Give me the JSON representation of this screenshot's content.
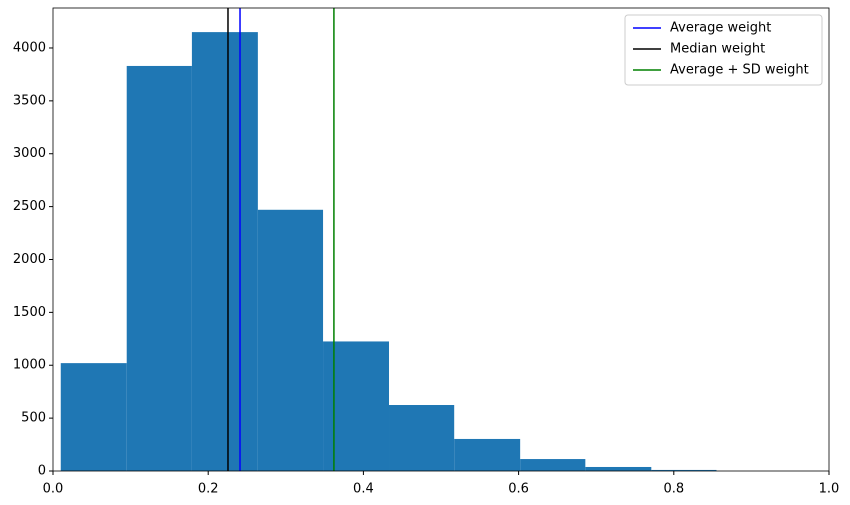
{
  "chart_data": {
    "type": "histogram",
    "bins": [
      0.01,
      0.095,
      0.179,
      0.264,
      0.348,
      0.433,
      0.517,
      0.602,
      0.686,
      0.771,
      0.855
    ],
    "values": [
      1020,
      3830,
      4150,
      2470,
      1225,
      624,
      303,
      113,
      38,
      10
    ],
    "color": "#1f77b4",
    "xlim": [
      0,
      1.0
    ],
    "xticks": [
      {
        "value": 0,
        "label": "0.0"
      },
      0.2,
      0.4,
      0.6,
      0.8,
      {
        "value": 1.0,
        "label": "1.0"
      }
    ],
    "ylim": [
      0,
      4378
    ],
    "yticks": [
      0,
      500,
      1000,
      1500,
      2000,
      2500,
      3000,
      3500,
      4000
    ],
    "vlines": [
      {
        "name": "Average weight",
        "color": "blue",
        "value": 0.241
      },
      {
        "name": "Median weight",
        "color": "black",
        "value": 0.2255
      },
      {
        "name": "Average + SD weight",
        "color": "green",
        "value": 0.362
      }
    ],
    "legend": "upper right"
  }
}
